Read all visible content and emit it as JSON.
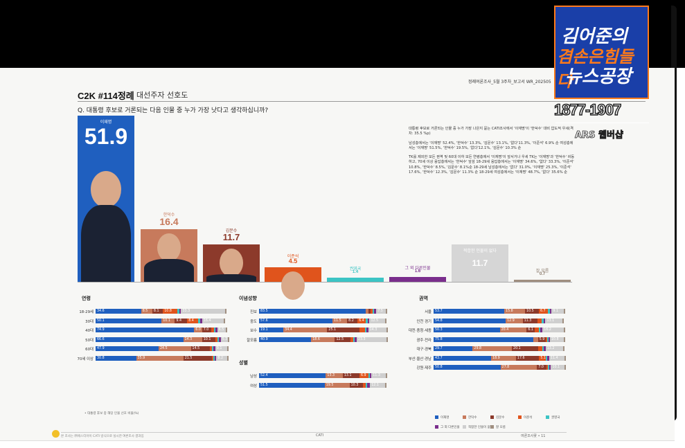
{
  "header": {
    "doc_ref": "정례여론조사_5월 3주차_보고서   WR_202505",
    "title": "C2K #114정례",
    "subtitle": "대선주자 선호도",
    "question": "Q. 대통령 후보로 거론되는 다음 인물 중 누가 가장 낫다고 생각하십니까?"
  },
  "logo": {
    "line1": "김어준의",
    "line2": "겸손은힘들다",
    "line3": "뉴스공장",
    "years": "1877-1907",
    "sub": "ARS 웹버샵"
  },
  "summary": [
    "대통령 후보로 거론되는 인물 중 누가 가장 나은지 묻는 CATI조사에서 '이재명'이 '한덕수' 대비 압도적 우세(격차: 35.5 %p)",
    "남성층에서는 '이재명' 52.4%, '한덕수' 13.3%, '김문수' 13.1%, '없다'11.3%, '이준석' 6.9% 순 여성층에서는 '이재명' 51.5%, '한덕수' 19.5%, '없다'12.1%, '김문수' 10.3% 순",
    "TK를 제외한 모든 권역 및 60대 이하 모든 연령층에서 '이재명'이 앞서거나 우세 TK는 '이재명'과 '한덕수' 비등하고, 70세 이상 응답층에서는 '한덕수' 앞섬 18-29세 응답층에서는 '이재명' 34.6%, '없다' 33.3%, '이준석' 10.8%, '한덕수' 8.5%, '김문수' 8.1%순 18-29세 남성층에서는 '없다' 31.0%, '이재명' 25.3%, '이준석' 17.6%, '한덕수' 12.3%, '김문수' 11.3% 순 18-29세 여성층에서는 '이재명' 48.7%, '없다' 35.6% 순"
  ],
  "colors": {
    "lee": "#1f5fbf",
    "han": "#c77a5c",
    "kim": "#8c3a2b",
    "ijs": "#e0541c",
    "kwon": "#3cc4c4",
    "other": "#7a2e8c",
    "none": "#cfcfcf",
    "dk": "#a08f80"
  },
  "chart_data": [
    {
      "type": "bar",
      "title": "",
      "categories": [
        "이재명",
        "한덕수",
        "김문수",
        "이준석",
        "권영국",
        "그 외 다른인물",
        "적합한 인물이 없다",
        "잘 모름"
      ],
      "values": [
        51.9,
        16.4,
        11.7,
        4.5,
        1.4,
        1.6,
        11.7,
        0.7
      ],
      "ylim": [
        0,
        55
      ]
    },
    {
      "type": "bar",
      "title": "연령",
      "stacked": true,
      "categories": [
        "18-29세",
        "30대",
        "40대",
        "50대",
        "60대",
        "70세 이상"
      ],
      "series": [
        {
          "name": "이재명",
          "values": [
            34.6,
            50.1,
            74.9,
            66.6,
            47.9,
            30.8
          ]
        },
        {
          "name": "한덕수",
          "values": [
            8.5,
            10.1,
            6.0,
            14.3,
            24.5,
            35.9
          ]
        },
        {
          "name": "김문수",
          "values": [
            8.1,
            9.4,
            7.0,
            10.1,
            14.5,
            21.5
          ]
        },
        {
          "name": "이준석",
          "values": [
            10.8,
            8.4,
            2.0,
            1.5,
            1.5,
            1.0
          ]
        },
        {
          "name": "권영국",
          "values": [
            1.5,
            1.5,
            1.0,
            0.5,
            0.5,
            0.3
          ]
        },
        {
          "name": "그 외 다른인물",
          "values": [
            1.5,
            1.5,
            1.5,
            1.5,
            1.5,
            1.5
          ]
        },
        {
          "name": "적합한 인물이 없다",
          "values": [
            33.3,
            16.4,
            6.5,
            5.3,
            9.1,
            8.2
          ]
        },
        {
          "name": "잘 모름",
          "values": [
            0.6,
            0.6,
            0.6,
            0.6,
            0.6,
            0.6
          ]
        }
      ],
      "xlim": [
        0,
        100
      ]
    },
    {
      "type": "bar",
      "title": "이념성향",
      "stacked": true,
      "categories": [
        "진보",
        "중도",
        "보수",
        "잘모름"
      ],
      "series": [
        {
          "name": "이재명",
          "values": [
            83.5,
            57.6,
            19.1,
            40.9
          ]
        },
        {
          "name": "한덕수",
          "values": [
            2.5,
            11.5,
            34.4,
            18.6
          ]
        },
        {
          "name": "김문수",
          "values": [
            1.5,
            8.2,
            25.1,
            12.5
          ]
        },
        {
          "name": "이준석",
          "values": [
            1.5,
            6.4,
            4.5,
            2.0
          ]
        },
        {
          "name": "권영국",
          "values": [
            1.5,
            1.5,
            0.5,
            0.5
          ]
        },
        {
          "name": "그 외 다른인물",
          "values": [
            1.5,
            1.5,
            1.5,
            1.5
          ]
        },
        {
          "name": "적합한 인물이 없다",
          "values": [
            7.5,
            12.5,
            14.3,
            23.3
          ]
        },
        {
          "name": "잘 모름",
          "values": [
            0.5,
            0.8,
            0.6,
            0.7
          ]
        }
      ],
      "xlim": [
        0,
        100
      ]
    },
    {
      "type": "bar",
      "title": "성별",
      "stacked": true,
      "categories": [
        "남성",
        "여성"
      ],
      "series": [
        {
          "name": "이재명",
          "values": [
            52.4,
            51.5
          ]
        },
        {
          "name": "한덕수",
          "values": [
            13.3,
            19.5
          ]
        },
        {
          "name": "김문수",
          "values": [
            13.1,
            10.3
          ]
        },
        {
          "name": "이준석",
          "values": [
            6.9,
            2.2
          ]
        },
        {
          "name": "권영국",
          "values": [
            1.4,
            1.4
          ]
        },
        {
          "name": "그 외 다른인물",
          "values": [
            1.0,
            2.2
          ]
        },
        {
          "name": "적합한 인물이 없다",
          "values": [
            11.3,
            12.1
          ]
        },
        {
          "name": "잘 모름",
          "values": [
            0.6,
            0.8
          ]
        }
      ],
      "xlim": [
        0,
        100
      ]
    },
    {
      "type": "bar",
      "title": "권역",
      "stacked": true,
      "categories": [
        "서울",
        "인천 경기",
        "대전·충청·세종",
        "광주·전라",
        "대구·경북",
        "부산·울산·경남",
        "강원·제주"
      ],
      "series": [
        {
          "name": "이재명",
          "values": [
            53.7,
            54.8,
            50.3,
            75.8,
            29.7,
            43.7,
            50.8
          ]
        },
        {
          "name": "한덕수",
          "values": [
            15.8,
            12.9,
            20.4,
            3.5,
            29.8,
            18.9,
            27.8
          ]
        },
        {
          "name": "김문수",
          "values": [
            10.5,
            11.3,
            6.1,
            5.9,
            20.1,
            17.6,
            7.0
          ]
        },
        {
          "name": "이준석",
          "values": [
            6.7,
            3.0,
            3.0,
            1.0,
            3.0,
            5.1,
            1.0
          ]
        },
        {
          "name": "권영국",
          "values": [
            1.5,
            1.5,
            1.5,
            1.0,
            1.0,
            1.0,
            1.0
          ]
        },
        {
          "name": "그 외 다른인물",
          "values": [
            1.5,
            1.5,
            1.5,
            1.0,
            1.5,
            1.5,
            1.5
          ]
        },
        {
          "name": "적합한 인물이 없다",
          "values": [
            9.1,
            13.1,
            16.2,
            10.8,
            13.2,
            11.4,
            10.1
          ]
        },
        {
          "name": "잘 모름",
          "values": [
            0.6,
            0.6,
            0.6,
            0.6,
            0.6,
            0.6,
            0.6
          ]
        }
      ],
      "xlim": [
        0,
        100
      ]
    }
  ],
  "legend": [
    "이재명",
    "한덕수",
    "김문수",
    "이준석",
    "권영국",
    "그 외 다른인물",
    "적합한 인물이 없다",
    "잘 모름"
  ],
  "footer": {
    "note": "• 대통령 후보 중 해당 인물 선호 비율(%)",
    "left": "본 조사는 ㈜에스티아이 CATI 방식으로 실시한 여론조사 결과임",
    "center": "CATI",
    "right": "여론조사꽃 • 11"
  }
}
